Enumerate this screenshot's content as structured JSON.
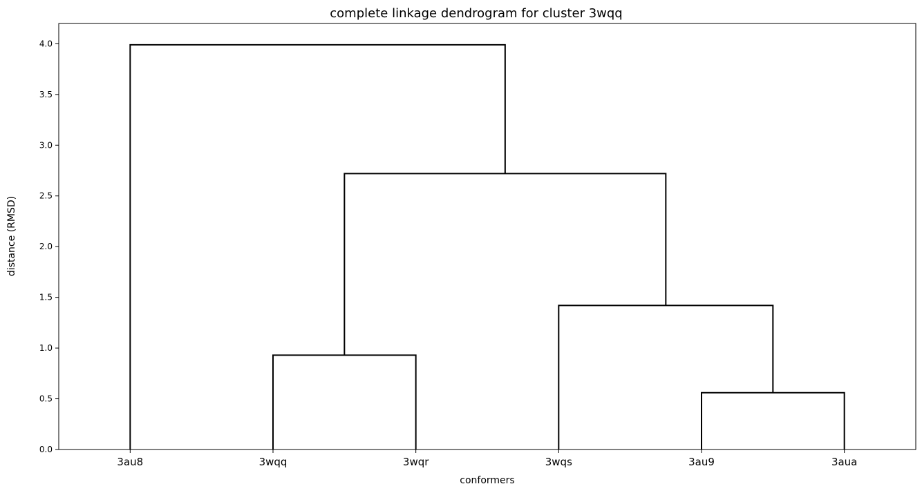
{
  "chart_data": {
    "type": "dendrogram",
    "title": "complete linkage dendrogram for cluster 3wqq",
    "xlabel": "conformers",
    "ylabel": "distance (RMSD)",
    "leaves": [
      "3au8",
      "3wqq",
      "3wqr",
      "3wqs",
      "3au9",
      "3aua"
    ],
    "ylim": [
      0,
      4.2
    ],
    "yticks": [
      "0.0",
      "0.5",
      "1.0",
      "1.5",
      "2.0",
      "2.5",
      "3.0",
      "3.5",
      "4.0"
    ],
    "ytick_values": [
      0,
      0.5,
      1.0,
      1.5,
      2.0,
      2.5,
      3.0,
      3.5,
      4.0
    ],
    "merges": [
      {
        "left": "3au9",
        "right": "3aua",
        "height": 0.56
      },
      {
        "left": "3wqq",
        "right": "3wqr",
        "height": 0.93
      },
      {
        "left": "3wqs",
        "right": "(3au9, 3aua)",
        "height": 1.42
      },
      {
        "left": "(3wqq, 3wqr)",
        "right": "(3wqs, (3au9, 3aua))",
        "height": 2.72
      },
      {
        "left": "3au8",
        "right": "((3wqq, 3wqr), (3wqs, (3au9, 3aua)))",
        "height": 3.99
      }
    ],
    "links": [
      {
        "from": [
          4,
          5
        ],
        "height": 0.56,
        "child_heights": [
          0,
          0
        ]
      },
      {
        "from": [
          1,
          2
        ],
        "height": 0.93,
        "child_heights": [
          0,
          0
        ]
      },
      {
        "from": [
          3,
          4.5
        ],
        "height": 1.42,
        "child_heights": [
          0,
          0.56
        ]
      },
      {
        "from": [
          1.5,
          3.75
        ],
        "height": 2.72,
        "child_heights": [
          0.93,
          1.42
        ]
      },
      {
        "from": [
          0,
          2.625
        ],
        "height": 3.99,
        "child_heights": [
          0,
          2.72
        ]
      }
    ],
    "color": "#000000",
    "grid": false
  }
}
